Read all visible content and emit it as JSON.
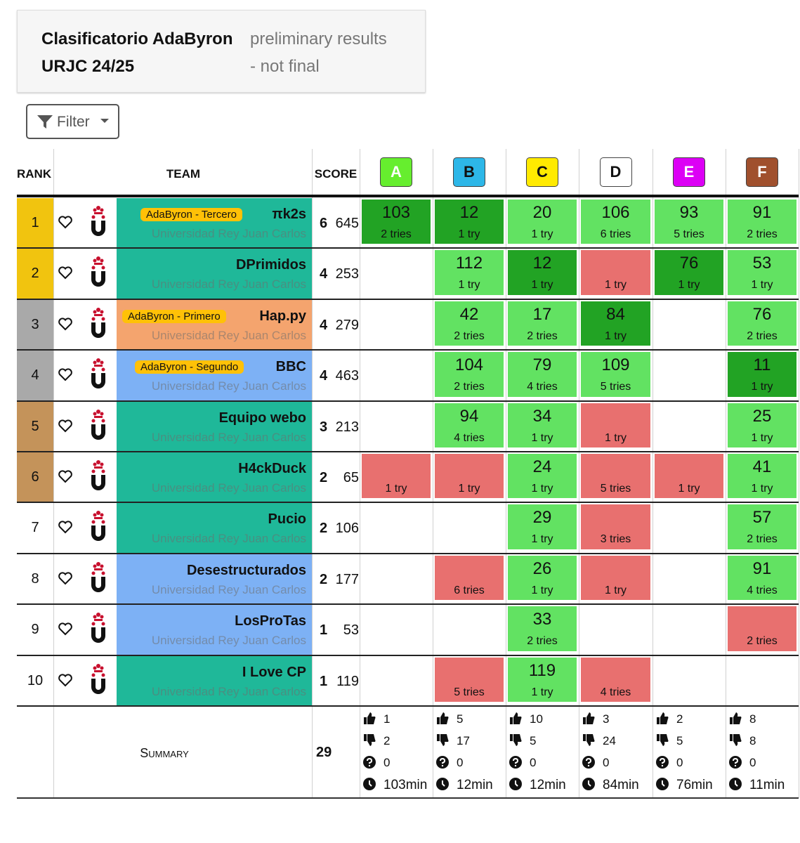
{
  "header": {
    "title": "Clasificatorio AdaByron",
    "subtitle": "URJC 24/25",
    "status": "preliminary results",
    "status_note": "- not final"
  },
  "filter": {
    "label": "Filter"
  },
  "columns": {
    "rank": "RANK",
    "team": "TEAM",
    "score": "SCORE"
  },
  "problems": [
    {
      "letter": "A",
      "color": "#66ee2e"
    },
    {
      "letter": "B",
      "color": "#2db7e8"
    },
    {
      "letter": "C",
      "color": "#ffea00"
    },
    {
      "letter": "D",
      "color": "#ffffff"
    },
    {
      "letter": "E",
      "color": "#dc00f5"
    },
    {
      "letter": "F",
      "color": "#a0502d"
    }
  ],
  "status_colors": {
    "first": "#22a324",
    "solved": "#62e262",
    "failed": "#e8706f"
  },
  "rows": [
    {
      "rank": "1",
      "rank_color": "#f1c40f",
      "team": "πk2s",
      "badge": "AdaByron - Tercero",
      "university": "Universidad Rey Juan Carlos",
      "team_color": "#1fb899",
      "solved": "6",
      "penalty": "645",
      "cells": [
        {
          "time": "103",
          "tries": "2 tries",
          "status": "first"
        },
        {
          "time": "12",
          "tries": "1 try",
          "status": "first"
        },
        {
          "time": "20",
          "tries": "1 try",
          "status": "solved"
        },
        {
          "time": "106",
          "tries": "6 tries",
          "status": "solved"
        },
        {
          "time": "93",
          "tries": "5 tries",
          "status": "solved"
        },
        {
          "time": "91",
          "tries": "2 tries",
          "status": "solved"
        }
      ]
    },
    {
      "rank": "2",
      "rank_color": "#f1c40f",
      "team": "DPrimidos",
      "badge": null,
      "university": "Universidad Rey Juan Carlos",
      "team_color": "#1fb899",
      "solved": "4",
      "penalty": "253",
      "cells": [
        null,
        {
          "time": "112",
          "tries": "1 try",
          "status": "solved"
        },
        {
          "time": "12",
          "tries": "1 try",
          "status": "first"
        },
        {
          "time": null,
          "tries": "1 try",
          "status": "failed"
        },
        {
          "time": "76",
          "tries": "1 try",
          "status": "first"
        },
        {
          "time": "53",
          "tries": "1 try",
          "status": "solved"
        }
      ]
    },
    {
      "rank": "3",
      "rank_color": "#a9a9a9",
      "team": "Hap.py",
      "badge": "AdaByron - Primero",
      "university": "Universidad Rey Juan Carlos",
      "team_color": "#f4a46e",
      "solved": "4",
      "penalty": "279",
      "cells": [
        null,
        {
          "time": "42",
          "tries": "2 tries",
          "status": "solved"
        },
        {
          "time": "17",
          "tries": "2 tries",
          "status": "solved"
        },
        {
          "time": "84",
          "tries": "1 try",
          "status": "first"
        },
        null,
        {
          "time": "76",
          "tries": "2 tries",
          "status": "solved"
        }
      ]
    },
    {
      "rank": "4",
      "rank_color": "#a9a9a9",
      "team": "BBC",
      "badge": "AdaByron - Segundo",
      "university": "Universidad Rey Juan Carlos",
      "team_color": "#7db1f5",
      "solved": "4",
      "penalty": "463",
      "cells": [
        null,
        {
          "time": "104",
          "tries": "2 tries",
          "status": "solved"
        },
        {
          "time": "79",
          "tries": "4 tries",
          "status": "solved"
        },
        {
          "time": "109",
          "tries": "5 tries",
          "status": "solved"
        },
        null,
        {
          "time": "11",
          "tries": "1 try",
          "status": "first"
        }
      ]
    },
    {
      "rank": "5",
      "rank_color": "#c4935a",
      "team": "Equipo webo",
      "badge": null,
      "university": "Universidad Rey Juan Carlos",
      "team_color": "#1fb899",
      "solved": "3",
      "penalty": "213",
      "cells": [
        null,
        {
          "time": "94",
          "tries": "4 tries",
          "status": "solved"
        },
        {
          "time": "34",
          "tries": "1 try",
          "status": "solved"
        },
        {
          "time": null,
          "tries": "1 try",
          "status": "failed"
        },
        null,
        {
          "time": "25",
          "tries": "1 try",
          "status": "solved"
        }
      ]
    },
    {
      "rank": "6",
      "rank_color": "#c4935a",
      "team": "H4ckDuck",
      "badge": null,
      "university": "Universidad Rey Juan Carlos",
      "team_color": "#1fb899",
      "solved": "2",
      "penalty": "65",
      "cells": [
        {
          "time": null,
          "tries": "1 try",
          "status": "failed"
        },
        {
          "time": null,
          "tries": "1 try",
          "status": "failed"
        },
        {
          "time": "24",
          "tries": "1 try",
          "status": "solved"
        },
        {
          "time": null,
          "tries": "5 tries",
          "status": "failed"
        },
        {
          "time": null,
          "tries": "1 try",
          "status": "failed"
        },
        {
          "time": "41",
          "tries": "1 try",
          "status": "solved"
        }
      ]
    },
    {
      "rank": "7",
      "rank_color": "#ffffff",
      "team": "Pucio",
      "badge": null,
      "university": "Universidad Rey Juan Carlos",
      "team_color": "#1fb899",
      "solved": "2",
      "penalty": "106",
      "cells": [
        null,
        null,
        {
          "time": "29",
          "tries": "1 try",
          "status": "solved"
        },
        {
          "time": null,
          "tries": "3 tries",
          "status": "failed"
        },
        null,
        {
          "time": "57",
          "tries": "2 tries",
          "status": "solved"
        }
      ]
    },
    {
      "rank": "8",
      "rank_color": "#ffffff",
      "team": "Desestructurados",
      "badge": null,
      "university": "Universidad Rey Juan Carlos",
      "team_color": "#7db1f5",
      "solved": "2",
      "penalty": "177",
      "cells": [
        null,
        {
          "time": null,
          "tries": "6 tries",
          "status": "failed"
        },
        {
          "time": "26",
          "tries": "1 try",
          "status": "solved"
        },
        {
          "time": null,
          "tries": "1 try",
          "status": "failed"
        },
        null,
        {
          "time": "91",
          "tries": "4 tries",
          "status": "solved"
        }
      ]
    },
    {
      "rank": "9",
      "rank_color": "#ffffff",
      "team": "LosProTas",
      "badge": null,
      "university": "Universidad Rey Juan Carlos",
      "team_color": "#7db1f5",
      "solved": "1",
      "penalty": "53",
      "cells": [
        null,
        null,
        {
          "time": "33",
          "tries": "2 tries",
          "status": "solved"
        },
        null,
        null,
        {
          "time": null,
          "tries": "2 tries",
          "status": "failed"
        }
      ]
    },
    {
      "rank": "10",
      "rank_color": "#ffffff",
      "team": "I Love CP",
      "badge": null,
      "university": "Universidad Rey Juan Carlos",
      "team_color": "#1fb899",
      "solved": "1",
      "penalty": "119",
      "cells": [
        null,
        {
          "time": null,
          "tries": "5 tries",
          "status": "failed"
        },
        {
          "time": "119",
          "tries": "1 try",
          "status": "solved"
        },
        {
          "time": null,
          "tries": "4 tries",
          "status": "failed"
        },
        null,
        null
      ]
    }
  ],
  "summary": {
    "label": "Summary",
    "total": "29",
    "problems": [
      {
        "accepted": "1",
        "rejected": "2",
        "pending": "0",
        "first": "103min"
      },
      {
        "accepted": "5",
        "rejected": "17",
        "pending": "0",
        "first": "12min"
      },
      {
        "accepted": "10",
        "rejected": "5",
        "pending": "0",
        "first": "12min"
      },
      {
        "accepted": "3",
        "rejected": "24",
        "pending": "0",
        "first": "84min"
      },
      {
        "accepted": "2",
        "rejected": "5",
        "pending": "0",
        "first": "76min"
      },
      {
        "accepted": "8",
        "rejected": "8",
        "pending": "0",
        "first": "11min"
      }
    ]
  }
}
